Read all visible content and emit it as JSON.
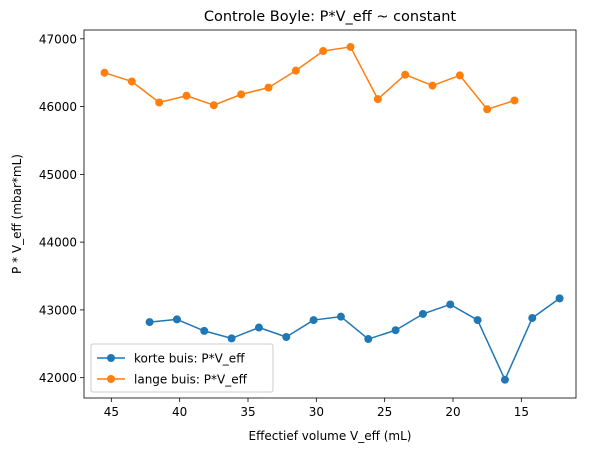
{
  "chart_data": {
    "type": "line",
    "title": "Controle Boyle: P*V_eff ~ constant",
    "xlabel": "Effectief volume V_eff (mL)",
    "ylabel": "P * V_eff (mbar*mL)",
    "x_inverted": true,
    "xlim": [
      47,
      11
    ],
    "ylim": [
      41700,
      47130
    ],
    "xticks": [
      45,
      40,
      35,
      30,
      25,
      20,
      15
    ],
    "yticks": [
      42000,
      43000,
      44000,
      45000,
      46000,
      47000
    ],
    "grid": false,
    "legend_position": "lower-left",
    "series": [
      {
        "name": "korte buis: P*V_eff",
        "color": "#1f77b4",
        "x": [
          42.2,
          40.2,
          38.2,
          36.2,
          34.2,
          32.2,
          30.2,
          28.2,
          26.2,
          24.2,
          22.2,
          20.2,
          18.2,
          16.2,
          14.2,
          12.2
        ],
        "y": [
          42820,
          42860,
          42690,
          42580,
          42740,
          42600,
          42850,
          42900,
          42570,
          42700,
          42940,
          43080,
          42850,
          41970,
          42880,
          43170
        ]
      },
      {
        "name": "lange buis: P*V_eff",
        "color": "#ff7f0e",
        "x": [
          45.5,
          43.5,
          41.5,
          39.5,
          37.5,
          35.5,
          33.5,
          31.5,
          29.5,
          27.5,
          25.5,
          23.5,
          21.5,
          19.5,
          17.5,
          15.5
        ],
        "y": [
          46500,
          46370,
          46060,
          46160,
          46020,
          46180,
          46280,
          46530,
          46820,
          46880,
          46110,
          46470,
          46310,
          46460,
          45960,
          46090
        ]
      }
    ]
  }
}
